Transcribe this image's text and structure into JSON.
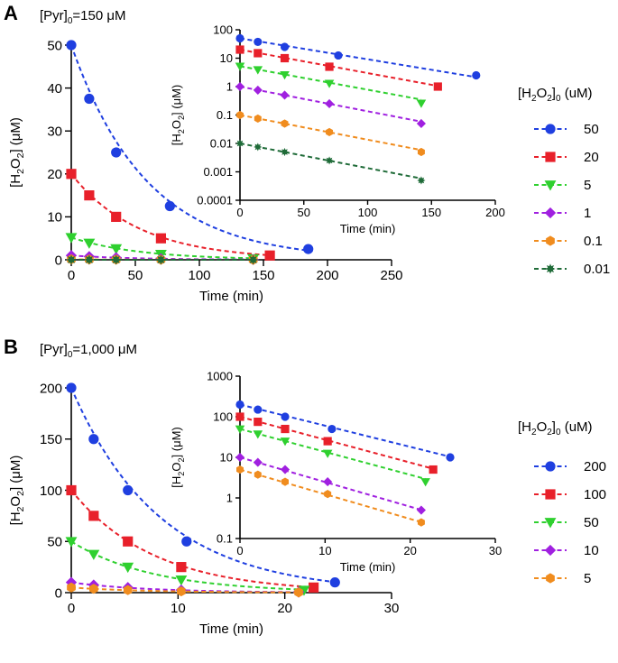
{
  "figure": {
    "panel_a": {
      "letter": "A",
      "condition": "[Pyr]",
      "condition_sub": "0",
      "condition_value": "=150 μM",
      "legend_title": "[H",
      "legend_title_sub1": "2",
      "legend_title_mid": "O",
      "legend_title_sub2": "2",
      "legend_title_end": "]",
      "legend_title_sub3": "0",
      "legend_title_unit": " (uM)"
    },
    "panel_b": {
      "letter": "B",
      "condition": "[Pyr]",
      "condition_sub": "0",
      "condition_value": "=1,000 μM",
      "legend_title": "[H",
      "legend_title_sub1": "2",
      "legend_title_mid": "O",
      "legend_title_sub2": "2",
      "legend_title_end": "]",
      "legend_title_sub3": "0",
      "legend_title_unit": " (uM)"
    },
    "colors": {
      "blue": "#1f3fe0",
      "red": "#e8202a",
      "green": "#2fd02f",
      "purple": "#a020e0",
      "orange": "#f08c1e",
      "darkgreen": "#1f6b38"
    }
  },
  "chart_data": [
    {
      "id": "A-main",
      "type": "scatter",
      "title": "",
      "xlabel": "Time (min)",
      "ylabel": "[H2O2] (μM)",
      "xlim": [
        0,
        250
      ],
      "ylim": [
        0,
        50
      ],
      "xticks": [
        "0",
        "50",
        "100",
        "150",
        "200",
        "250"
      ],
      "yticks": [
        "0",
        "10",
        "20",
        "30",
        "40",
        "50"
      ],
      "series": [
        {
          "name": "50",
          "marker": "circle",
          "color": "#1f3fe0",
          "k": 0.017,
          "x": [
            0,
            14,
            35,
            77,
            185
          ],
          "y": [
            50,
            37.5,
            25,
            12.5,
            2.5
          ]
        },
        {
          "name": "20",
          "marker": "square",
          "color": "#e8202a",
          "k": 0.019,
          "x": [
            0,
            14,
            35,
            70,
            155
          ],
          "y": [
            20,
            15,
            10,
            5,
            1
          ]
        },
        {
          "name": "5",
          "marker": "triangle-down",
          "color": "#2fd02f",
          "k": 0.019,
          "x": [
            0,
            14,
            35,
            70,
            142
          ],
          "y": [
            5.2,
            3.9,
            2.6,
            1.3,
            0.26
          ]
        },
        {
          "name": "1",
          "marker": "diamond",
          "color": "#a020e0",
          "k": 0.02,
          "x": [
            0,
            14,
            35,
            70,
            142
          ],
          "y": [
            1,
            0.75,
            0.5,
            0.25,
            0.05
          ]
        },
        {
          "name": "0.1",
          "marker": "hexagon",
          "color": "#f08c1e",
          "k": 0.02,
          "x": [
            0,
            14,
            35,
            70,
            142
          ],
          "y": [
            0.1,
            0.075,
            0.05,
            0.025,
            0.005
          ]
        },
        {
          "name": "0.01",
          "marker": "star",
          "color": "#1f6b38",
          "k": 0.02,
          "x": [
            0,
            14,
            35,
            70,
            142
          ],
          "y": [
            0.01,
            0.0075,
            0.005,
            0.0025,
            0.0005
          ]
        }
      ]
    },
    {
      "id": "A-inset",
      "type": "scatter",
      "yscale": "log",
      "xlabel": "Time (min)",
      "ylabel": "[H2O2] (μM)",
      "xlim": [
        0,
        200
      ],
      "ylim": [
        0.0001,
        100
      ],
      "xticks": [
        "0",
        "50",
        "100",
        "150",
        "200"
      ],
      "yticks": [
        "0.0001",
        "0.001",
        "0.01",
        "0.1",
        "1",
        "10",
        "100"
      ],
      "series_ref": "A-main"
    },
    {
      "id": "B-main",
      "type": "scatter",
      "title": "",
      "xlabel": "Time (min)",
      "ylabel": "[H2O2] (μM)",
      "xlim": [
        0,
        30
      ],
      "ylim": [
        0,
        200
      ],
      "xticks": [
        "0",
        "10",
        "20",
        "30"
      ],
      "yticks": [
        "0",
        "50",
        "100",
        "150",
        "200"
      ],
      "series": [
        {
          "name": "200",
          "marker": "circle",
          "color": "#1f3fe0",
          "k": 0.12,
          "x": [
            0,
            2.1,
            5.3,
            10.8,
            24.7
          ],
          "y": [
            200,
            150,
            100,
            50,
            10
          ]
        },
        {
          "name": "100",
          "marker": "square",
          "color": "#e8202a",
          "k": 0.13,
          "x": [
            0,
            2.1,
            5.3,
            10.3,
            22.7
          ],
          "y": [
            100,
            75,
            50,
            25,
            5
          ]
        },
        {
          "name": "50",
          "marker": "triangle-down",
          "color": "#2fd02f",
          "k": 0.13,
          "x": [
            0,
            2.1,
            5.3,
            10.3,
            21.8
          ],
          "y": [
            50,
            37.5,
            25,
            12.5,
            2.5
          ]
        },
        {
          "name": "10",
          "marker": "diamond",
          "color": "#a020e0",
          "k": 0.14,
          "x": [
            0,
            2.1,
            5.3,
            10.3,
            21.3
          ],
          "y": [
            10,
            7.5,
            5,
            2.5,
            0.5
          ]
        },
        {
          "name": "5",
          "marker": "hexagon",
          "color": "#f08c1e",
          "k": 0.14,
          "x": [
            0,
            2.1,
            5.3,
            10.3,
            21.3
          ],
          "y": [
            5,
            3.75,
            2.5,
            1.25,
            0.25
          ]
        }
      ]
    },
    {
      "id": "B-inset",
      "type": "scatter",
      "yscale": "log",
      "xlabel": "Time (min)",
      "ylabel": "[H2O2] (μM)",
      "xlim": [
        0,
        30
      ],
      "ylim": [
        0.1,
        1000
      ],
      "xticks": [
        "0",
        "10",
        "20",
        "30"
      ],
      "yticks": [
        "0.1",
        "1",
        "10",
        "100",
        "1000"
      ],
      "series_ref": "B-main"
    }
  ]
}
